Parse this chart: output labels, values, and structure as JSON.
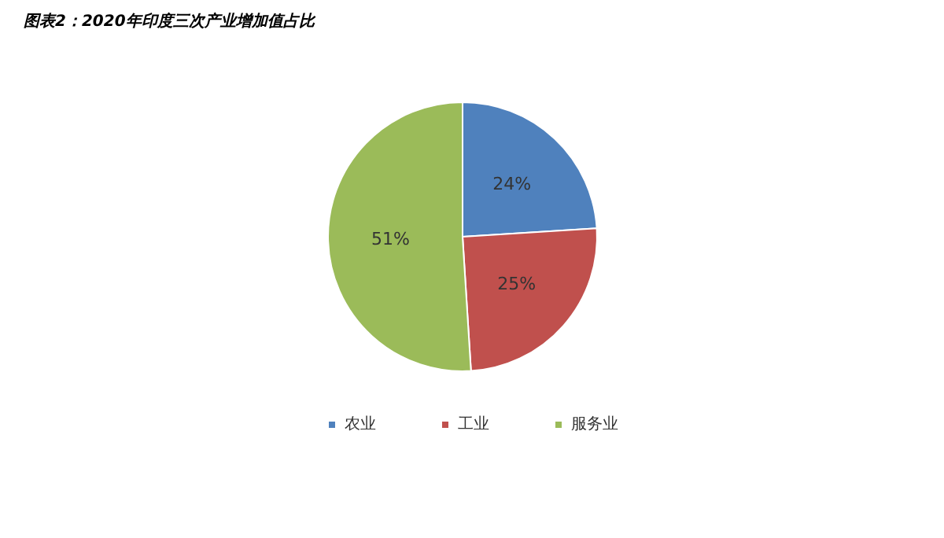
{
  "chart_data": {
    "type": "pie",
    "title": "图表2：2020年印度三次产业增加值占比",
    "categories": [
      "农业",
      "工业",
      "服务业"
    ],
    "values": [
      24,
      25,
      51
    ],
    "value_labels": [
      "24%",
      "25%",
      "51%"
    ],
    "colors": [
      "#4f81bd",
      "#c0504d",
      "#9bbb59"
    ],
    "legend": "bottom"
  }
}
